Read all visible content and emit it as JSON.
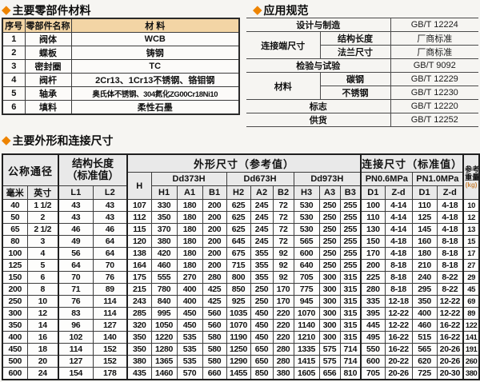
{
  "materials": {
    "title": "主要零部件材料",
    "headers": [
      "序号",
      "零部件名称",
      "材 料"
    ],
    "rows": [
      [
        "1",
        "阀体",
        "WCB"
      ],
      [
        "2",
        "蝶板",
        "铸钢"
      ],
      [
        "3",
        "密封圈",
        "TC"
      ],
      [
        "4",
        "阀杆",
        "2Cr13、1Cr13不锈钢、铬钼钢"
      ],
      [
        "5",
        "轴承",
        "奥氏体不锈钢、304氮化ZG00Cr18Ni10"
      ],
      [
        "6",
        "填料",
        "柔性石墨"
      ]
    ]
  },
  "standards": {
    "title": "应用规范",
    "rows": [
      {
        "label": "设计与制造",
        "value": "GB/T 12224"
      },
      {
        "label": "连接端尺寸",
        "subs": [
          {
            "sub": "结构长度",
            "value": "厂商标准"
          },
          {
            "sub": "法兰尺寸",
            "value": "厂商标准"
          }
        ]
      },
      {
        "label": "检验与试验",
        "value": "GB/T 9092"
      },
      {
        "label": "材料",
        "subs": [
          {
            "sub": "碳钢",
            "value": "GB/T 12229"
          },
          {
            "sub": "不锈钢",
            "value": "GB/T 12230"
          }
        ]
      },
      {
        "label": "标志",
        "value": "GB/T 12220"
      },
      {
        "label": "供货",
        "value": "GB/T 12252"
      }
    ]
  },
  "dims": {
    "title": "主要外形和连接尺寸",
    "header": {
      "nominal": "公称通径",
      "length1": "结构长度",
      "length2": "（标准值）",
      "outline": "外形尺寸（参考值）",
      "connect": "连接尺寸（标准值）",
      "weight1": "参考",
      "weight2": "重量",
      "weight3": "(kg)",
      "h": "H",
      "models": [
        "Dd373H",
        "Dd673H",
        "Dd973H"
      ],
      "pn": [
        "PN0.6MPa",
        "PN1.0MPa"
      ],
      "mm": "毫米",
      "inch": "英寸",
      "l1": "L1",
      "l2": "L2",
      "dim_cols": [
        "H1",
        "A1",
        "B1",
        "H2",
        "A2",
        "B2",
        "H3",
        "A3",
        "B3"
      ],
      "conn_cols": [
        "D1",
        "Z-d",
        "D1",
        "Z-d"
      ]
    },
    "rows": [
      [
        "40",
        "1 1/2",
        "43",
        "43",
        "107",
        "330",
        "180",
        "200",
        "625",
        "245",
        "72",
        "530",
        "250",
        "255",
        "100",
        "4-14",
        "110",
        "4-18",
        "10"
      ],
      [
        "50",
        "2",
        "43",
        "43",
        "112",
        "350",
        "180",
        "200",
        "625",
        "245",
        "72",
        "530",
        "250",
        "255",
        "110",
        "4-14",
        "125",
        "4-18",
        "12"
      ],
      [
        "65",
        "2 1/2",
        "46",
        "46",
        "115",
        "370",
        "180",
        "200",
        "625",
        "245",
        "72",
        "530",
        "250",
        "255",
        "130",
        "4-14",
        "145",
        "4-18",
        "13"
      ],
      [
        "80",
        "3",
        "49",
        "64",
        "120",
        "380",
        "180",
        "200",
        "645",
        "245",
        "72",
        "565",
        "250",
        "255",
        "150",
        "4-18",
        "160",
        "8-18",
        "15"
      ],
      [
        "100",
        "4",
        "56",
        "64",
        "138",
        "420",
        "180",
        "200",
        "675",
        "355",
        "92",
        "600",
        "250",
        "255",
        "170",
        "4-18",
        "180",
        "8-18",
        "17"
      ],
      [
        "125",
        "5",
        "64",
        "70",
        "164",
        "460",
        "180",
        "200",
        "715",
        "355",
        "92",
        "640",
        "250",
        "255",
        "200",
        "8-18",
        "210",
        "8-18",
        "27"
      ],
      [
        "150",
        "6",
        "70",
        "76",
        "175",
        "555",
        "270",
        "280",
        "800",
        "355",
        "92",
        "705",
        "300",
        "315",
        "225",
        "8-18",
        "240",
        "8-22",
        "29"
      ],
      [
        "200",
        "8",
        "71",
        "89",
        "215",
        "780",
        "400",
        "425",
        "850",
        "250",
        "170",
        "775",
        "300",
        "315",
        "280",
        "8-18",
        "295",
        "8-22",
        "45"
      ],
      [
        "250",
        "10",
        "76",
        "114",
        "243",
        "840",
        "400",
        "425",
        "925",
        "250",
        "170",
        "945",
        "300",
        "315",
        "335",
        "12-18",
        "350",
        "12-22",
        "69"
      ],
      [
        "300",
        "12",
        "83",
        "114",
        "285",
        "995",
        "450",
        "560",
        "1035",
        "450",
        "220",
        "1070",
        "300",
        "315",
        "395",
        "12-22",
        "400",
        "12-22",
        "89"
      ],
      [
        "350",
        "14",
        "96",
        "127",
        "320",
        "1050",
        "450",
        "560",
        "1070",
        "450",
        "220",
        "1140",
        "300",
        "315",
        "445",
        "12-22",
        "460",
        "16-22",
        "122"
      ],
      [
        "400",
        "16",
        "102",
        "140",
        "350",
        "1220",
        "535",
        "580",
        "1190",
        "450",
        "220",
        "1210",
        "300",
        "315",
        "495",
        "16-22",
        "515",
        "16-22",
        "141"
      ],
      [
        "450",
        "18",
        "114",
        "152",
        "350",
        "1280",
        "535",
        "580",
        "1250",
        "650",
        "280",
        "1335",
        "575",
        "714",
        "550",
        "16-22",
        "565",
        "20-26",
        "191"
      ],
      [
        "500",
        "20",
        "127",
        "152",
        "380",
        "1365",
        "535",
        "580",
        "1290",
        "650",
        "280",
        "1415",
        "575",
        "714",
        "600",
        "20-22",
        "620",
        "20-26",
        "260"
      ],
      [
        "600",
        "24",
        "154",
        "178",
        "435",
        "1460",
        "570",
        "660",
        "1455",
        "850",
        "380",
        "1605",
        "656",
        "810",
        "705",
        "20-26",
        "725",
        "20-30",
        "380"
      ]
    ]
  }
}
